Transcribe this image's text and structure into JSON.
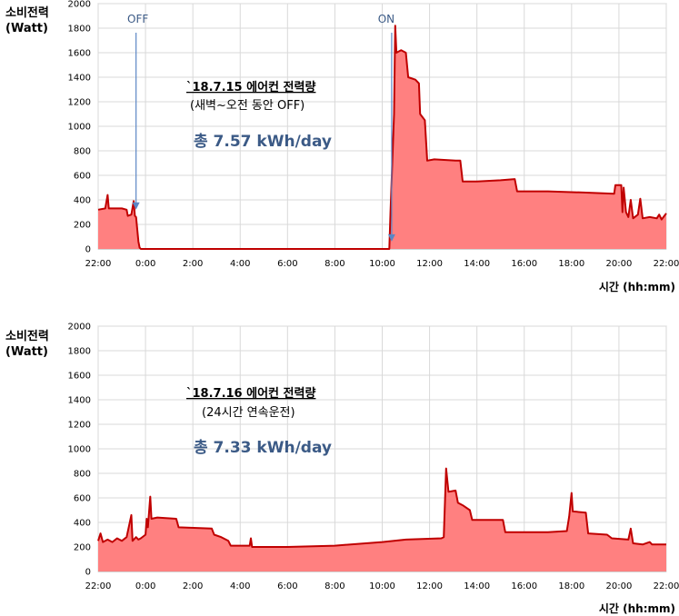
{
  "chart_data": [
    {
      "type": "area",
      "ylabel_line1": "소비전력",
      "ylabel_line2": "(Watt)",
      "xlabel": "시간 (hh:mm)",
      "ylim": [
        0,
        2000
      ],
      "y_ticks": [
        "0",
        "200",
        "400",
        "600",
        "800",
        "1000",
        "1200",
        "1400",
        "1600",
        "1800",
        "2000"
      ],
      "x_ticks": [
        "22:00",
        "0:00",
        "2:00",
        "4:00",
        "6:00",
        "8:00",
        "10:00",
        "12:00",
        "14:00",
        "16:00",
        "18:00",
        "20:00",
        "22:00"
      ],
      "annotation_title": "`18.7.15  에어컨 전력량",
      "annotation_sub": "(새벽~오전 동안 OFF)",
      "annotation_total": "총 7.57 kWh/day",
      "markers": [
        {
          "label": "OFF",
          "x": 1.6
        },
        {
          "label": "ON",
          "x": 12.4
        }
      ],
      "series": [
        {
          "color": "#c00000",
          "fill": "#ff8080",
          "points": [
            [
              0,
              320
            ],
            [
              0.3,
              330
            ],
            [
              0.4,
              440
            ],
            [
              0.45,
              330
            ],
            [
              1.0,
              330
            ],
            [
              1.2,
              320
            ],
            [
              1.25,
              270
            ],
            [
              1.4,
              280
            ],
            [
              1.5,
              390
            ],
            [
              1.55,
              270
            ],
            [
              1.6,
              260
            ],
            [
              1.7,
              60
            ],
            [
              1.75,
              10
            ],
            [
              1.8,
              0
            ],
            [
              12.3,
              0
            ],
            [
              12.35,
              300
            ],
            [
              12.5,
              1100
            ],
            [
              12.55,
              1820
            ],
            [
              12.6,
              1600
            ],
            [
              12.8,
              1620
            ],
            [
              13.0,
              1600
            ],
            [
              13.1,
              1400
            ],
            [
              13.4,
              1380
            ],
            [
              13.55,
              1350
            ],
            [
              13.6,
              1100
            ],
            [
              13.8,
              1050
            ],
            [
              13.9,
              720
            ],
            [
              14.2,
              730
            ],
            [
              15.1,
              720
            ],
            [
              15.3,
              720
            ],
            [
              15.4,
              550
            ],
            [
              16.0,
              550
            ],
            [
              17.0,
              560
            ],
            [
              17.6,
              570
            ],
            [
              17.7,
              470
            ],
            [
              19.0,
              470
            ],
            [
              20.5,
              460
            ],
            [
              21.8,
              450
            ],
            [
              21.85,
              520
            ],
            [
              22.1,
              520
            ],
            [
              22.15,
              300
            ],
            [
              22.2,
              500
            ],
            [
              22.3,
              300
            ],
            [
              22.4,
              260
            ],
            [
              22.5,
              400
            ],
            [
              22.6,
              250
            ],
            [
              22.8,
              280
            ],
            [
              22.9,
              410
            ],
            [
              23.0,
              250
            ],
            [
              23.3,
              260
            ],
            [
              23.6,
              250
            ],
            [
              23.7,
              280
            ],
            [
              23.8,
              240
            ],
            [
              24,
              290
            ]
          ]
        }
      ]
    },
    {
      "type": "area",
      "ylabel_line1": "소비전력",
      "ylabel_line2": "(Watt)",
      "xlabel": "시간 (hh:mm)",
      "ylim": [
        0,
        2000
      ],
      "y_ticks": [
        "0",
        "200",
        "400",
        "600",
        "800",
        "1000",
        "1200",
        "1400",
        "1600",
        "1800",
        "2000"
      ],
      "x_ticks": [
        "22:00",
        "0:00",
        "2:00",
        "4:00",
        "6:00",
        "8:00",
        "10:00",
        "12:00",
        "14:00",
        "16:00",
        "18:00",
        "20:00",
        "22:00"
      ],
      "annotation_title": "`18.7.16  에어컨 전력량",
      "annotation_sub": "(24시간 연속운전)",
      "annotation_total": "총 7.33 kWh/day",
      "markers": [],
      "series": [
        {
          "color": "#c00000",
          "fill": "#ff8080",
          "points": [
            [
              0,
              250
            ],
            [
              0.1,
              310
            ],
            [
              0.2,
              240
            ],
            [
              0.4,
              260
            ],
            [
              0.6,
              240
            ],
            [
              0.8,
              270
            ],
            [
              1.0,
              250
            ],
            [
              1.2,
              280
            ],
            [
              1.4,
              460
            ],
            [
              1.45,
              250
            ],
            [
              1.6,
              280
            ],
            [
              1.7,
              260
            ],
            [
              1.8,
              270
            ],
            [
              2.0,
              300
            ],
            [
              2.05,
              430
            ],
            [
              2.1,
              360
            ],
            [
              2.2,
              610
            ],
            [
              2.25,
              430
            ],
            [
              2.5,
              440
            ],
            [
              3.3,
              430
            ],
            [
              3.4,
              360
            ],
            [
              4.8,
              350
            ],
            [
              4.9,
              300
            ],
            [
              5.2,
              280
            ],
            [
              5.5,
              250
            ],
            [
              5.6,
              210
            ],
            [
              6.4,
              210
            ],
            [
              6.45,
              270
            ],
            [
              6.5,
              200
            ],
            [
              8.0,
              200
            ],
            [
              10.0,
              210
            ],
            [
              12.0,
              240
            ],
            [
              13.0,
              260
            ],
            [
              14.5,
              270
            ],
            [
              14.6,
              280
            ],
            [
              14.7,
              840
            ],
            [
              14.8,
              650
            ],
            [
              15.1,
              660
            ],
            [
              15.2,
              560
            ],
            [
              15.4,
              540
            ],
            [
              15.7,
              500
            ],
            [
              15.8,
              420
            ],
            [
              17.1,
              420
            ],
            [
              17.2,
              320
            ],
            [
              19.0,
              320
            ],
            [
              19.8,
              330
            ],
            [
              19.9,
              450
            ],
            [
              20.0,
              640
            ],
            [
              20.05,
              490
            ],
            [
              20.6,
              480
            ],
            [
              20.7,
              310
            ],
            [
              21.5,
              300
            ],
            [
              21.7,
              270
            ],
            [
              22.4,
              260
            ],
            [
              22.5,
              350
            ],
            [
              22.6,
              230
            ],
            [
              23.0,
              220
            ],
            [
              23.3,
              240
            ],
            [
              23.4,
              220
            ],
            [
              24,
              220
            ]
          ]
        }
      ]
    }
  ]
}
